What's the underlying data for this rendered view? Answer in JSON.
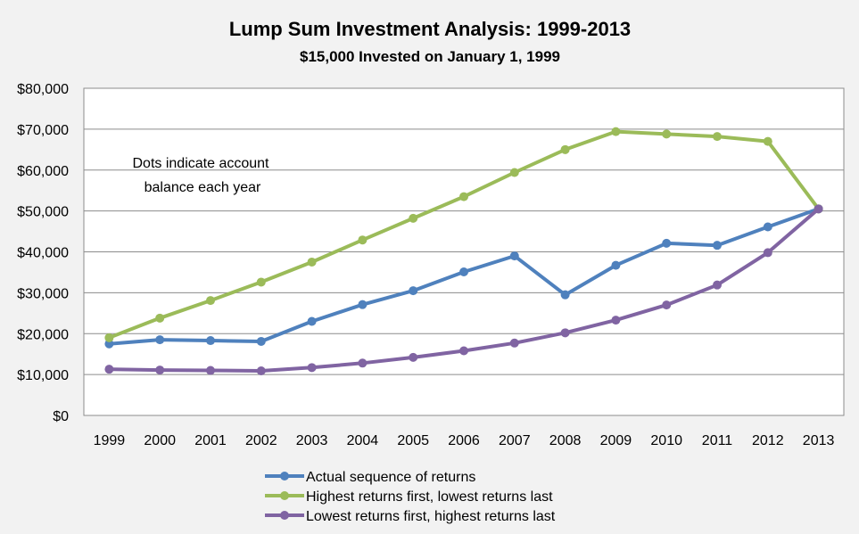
{
  "chart_data": {
    "type": "line",
    "title": "Lump Sum Investment Analysis:  1999-2013",
    "subtitle": "$15,000 Invested on January 1, 1999",
    "annotation": [
      "Dots indicate account",
      "balance each year"
    ],
    "categories": [
      "1999",
      "2000",
      "2001",
      "2002",
      "2003",
      "2004",
      "2005",
      "2006",
      "2007",
      "2008",
      "2009",
      "2010",
      "2011",
      "2012",
      "2013"
    ],
    "ylim": [
      0,
      80000
    ],
    "y_ticks": [
      0,
      10000,
      20000,
      30000,
      40000,
      50000,
      60000,
      70000,
      80000
    ],
    "y_tick_labels": [
      "$0",
      "$10,000",
      "$20,000",
      "$30,000",
      "$40,000",
      "$50,000",
      "$60,000",
      "$70,000",
      "$80,000"
    ],
    "grid": true,
    "legend_position": "bottom",
    "series": [
      {
        "name": "Actual sequence of returns",
        "color": "#4f81bd",
        "values": [
          17500,
          18500,
          18300,
          18100,
          23000,
          27100,
          30500,
          35100,
          39000,
          29500,
          36700,
          42100,
          41600,
          46100,
          50500
        ]
      },
      {
        "name": "Highest returns first, lowest returns last",
        "color": "#9bbb59",
        "values": [
          19000,
          23800,
          28100,
          32600,
          37500,
          42900,
          48200,
          53500,
          59400,
          65000,
          69400,
          68800,
          68200,
          67000,
          50500
        ]
      },
      {
        "name": "Lowest returns first, highest returns last",
        "color": "#8064a2",
        "values": [
          11300,
          11100,
          11000,
          10900,
          11700,
          12800,
          14200,
          15800,
          17700,
          20200,
          23300,
          27000,
          31900,
          39800,
          50500
        ]
      }
    ]
  }
}
